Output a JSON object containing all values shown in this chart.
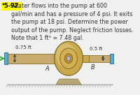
{
  "title_number": "*5-92.",
  "title_number_bg": "#ffff00",
  "body_text": " Water flows into the pump at 600\ngal/min and has a pressure of 4 psi. It exits\nthe pump at 18 psi. Determine the power\noutput of the pump. Neglect friction losses.\nNote that 1 ft³ = 7.48 gal.",
  "label_A": "A",
  "label_B": "B",
  "dim_left": "0.75 ft",
  "dim_right": "0.5 ft",
  "pipe_blue": "#5aaad0",
  "pipe_blue_dark": "#2a6a90",
  "pipe_tan": "#c8aa6e",
  "pipe_tan_dark": "#8a7030",
  "pipe_tan_mid": "#b8962e",
  "pump_gold": "#c8a84b",
  "pump_gold_dark": "#7a6020",
  "pump_gold_light": "#e8d090",
  "ground_color": "#aaaaaa",
  "text_color": "#333333",
  "text_fontsize": 5.8,
  "background_color": "#f0f0ee",
  "arrow_color": "#22aa22",
  "fig_width": 2.0,
  "fig_height": 1.36,
  "dpi": 100
}
